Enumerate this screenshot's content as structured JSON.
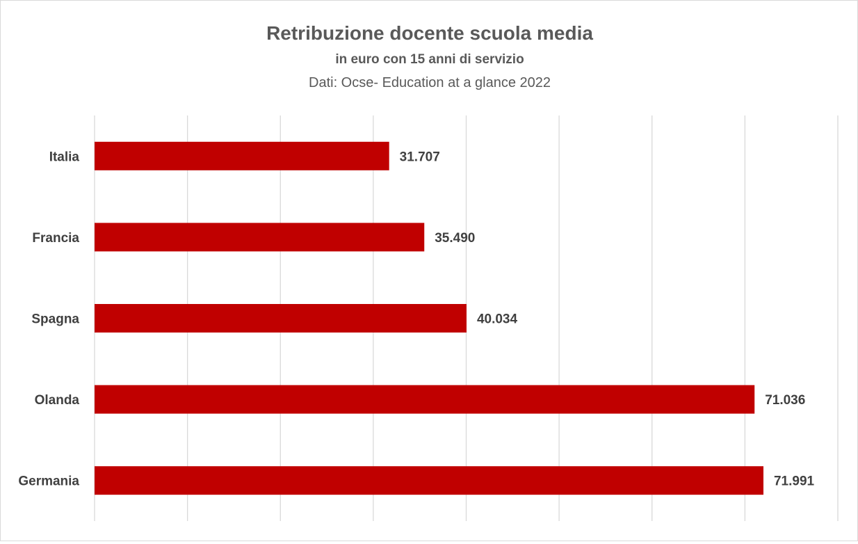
{
  "chart_data": {
    "type": "bar",
    "orientation": "horizontal",
    "title": "Retribuzione docente scuola media",
    "subtitle": "in euro con 15 anni di servizio",
    "source": "Dati: Ocse- Education at a glance 2022",
    "categories": [
      "Italia",
      "Francia",
      "Spagna",
      "Olanda",
      "Germania"
    ],
    "values": [
      31707,
      35490,
      40034,
      71036,
      71991
    ],
    "value_labels": [
      "31.707",
      "35.490",
      "40.034",
      "71.036",
      "71.991"
    ],
    "xlim": [
      0,
      80000
    ],
    "x_gridline_step": 10000,
    "x_tick_labels_shown": false,
    "grid": true,
    "legend": "none",
    "bar_color": "#c00000"
  }
}
